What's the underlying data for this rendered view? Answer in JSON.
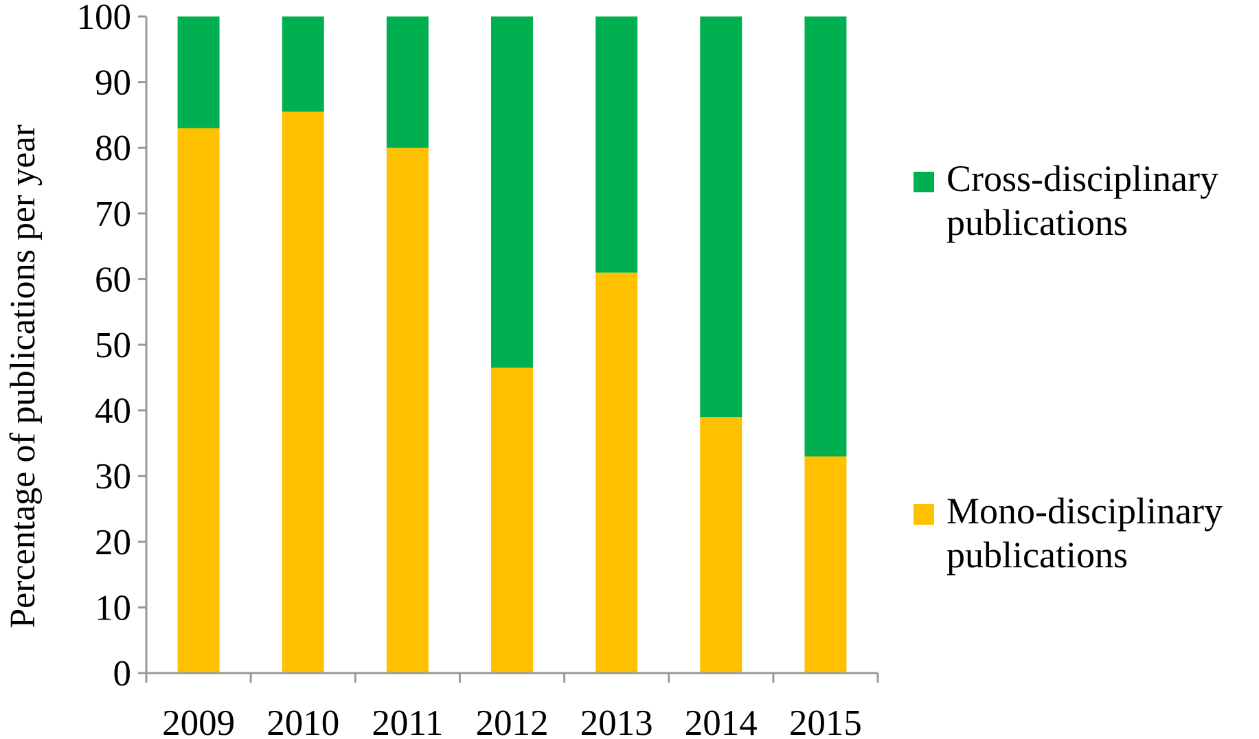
{
  "chart_data": {
    "type": "bar",
    "stacked": true,
    "categories": [
      "2009",
      "2010",
      "2011",
      "2012",
      "2013",
      "2014",
      "2015"
    ],
    "series": [
      {
        "name": "Mono-disciplinary publications",
        "color": "#FFC000",
        "values": [
          83,
          85.5,
          80,
          46.5,
          61,
          39,
          33
        ]
      },
      {
        "name": "Cross-disciplinary publications",
        "color": "#00B050",
        "values": [
          17,
          14.5,
          20,
          53.5,
          39,
          61,
          67
        ]
      }
    ],
    "title": "",
    "xlabel": "",
    "ylabel": "Percentage of publications per year",
    "ylim": [
      0,
      100
    ],
    "yticks": [
      "0",
      "10",
      "20",
      "30",
      "40",
      "50",
      "60",
      "70",
      "80",
      "90",
      "100"
    ],
    "grid": false,
    "legend_position": "right",
    "axis_color": "#999999"
  },
  "legend": {
    "cross_label": "Cross-disciplinary publications",
    "mono_label": "Mono-disciplinary publications"
  }
}
